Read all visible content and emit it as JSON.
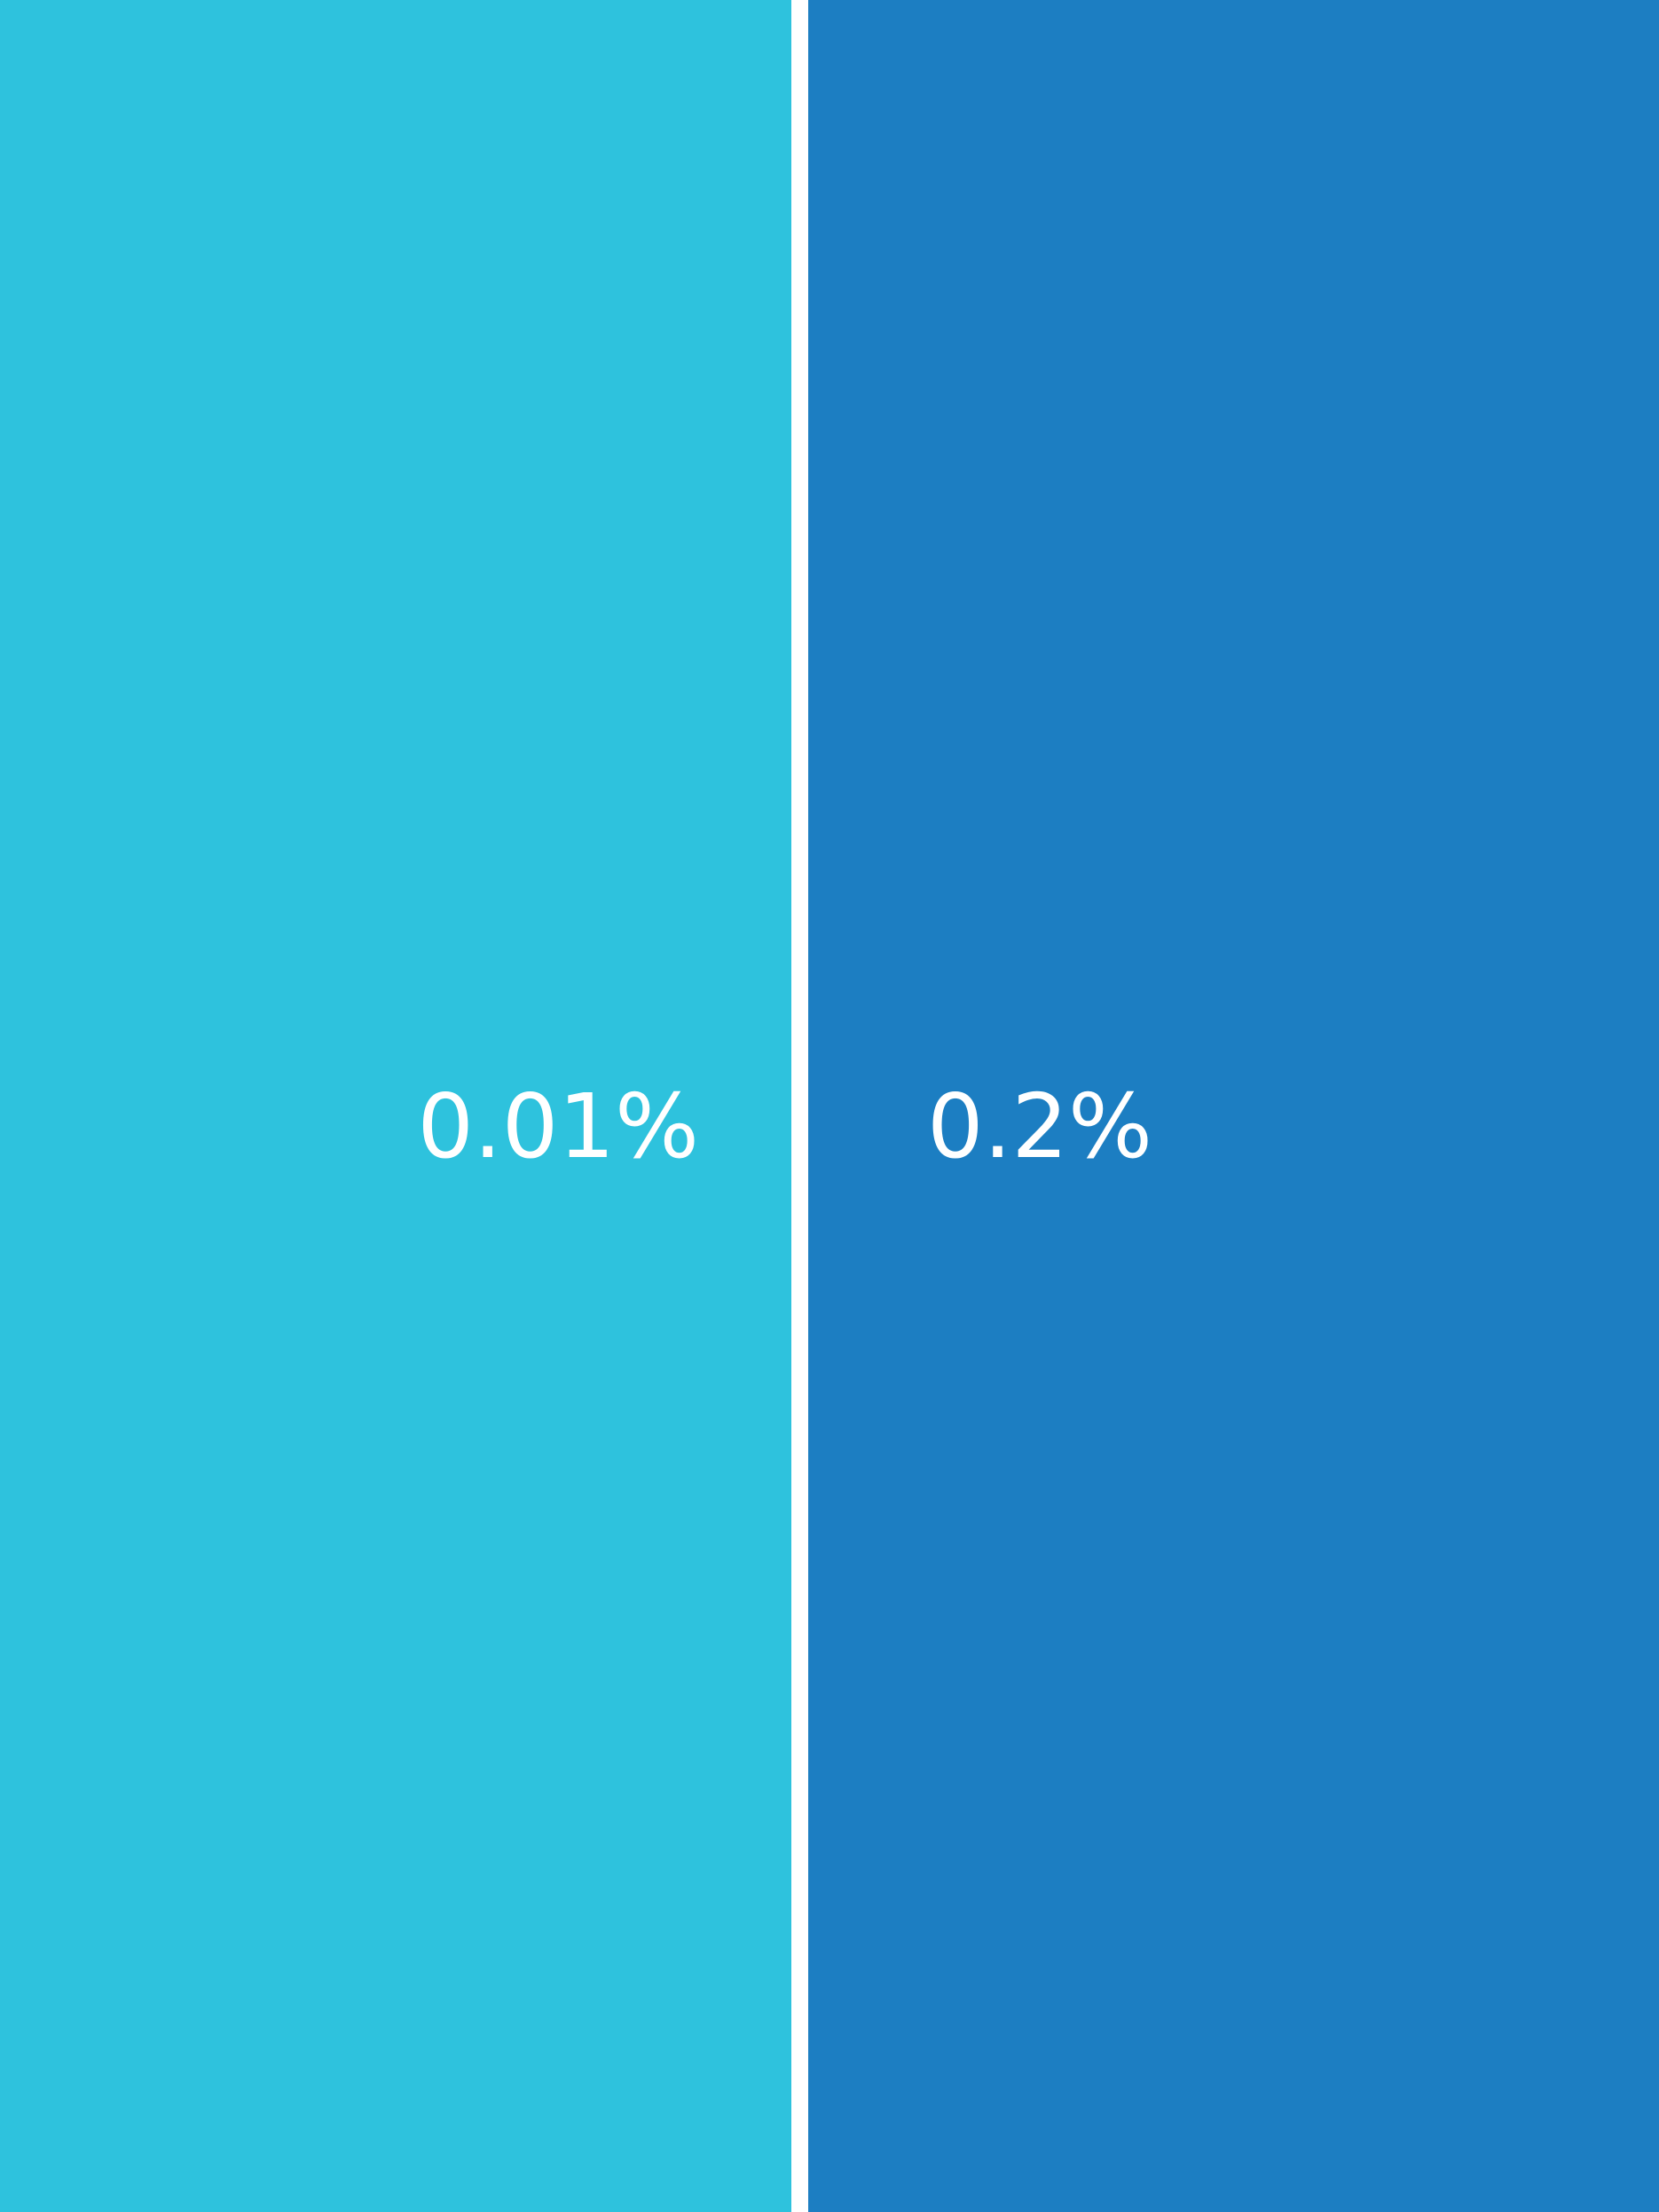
{
  "chart_data": {
    "type": "bar",
    "categories": [
      "",
      ""
    ],
    "values": [
      0.01,
      0.2
    ],
    "labels": [
      "0.01%",
      "0.2%"
    ],
    "colors": [
      "#2EC2DD",
      "#1C7EC2"
    ],
    "title": "",
    "xlabel": "",
    "ylabel": ""
  }
}
